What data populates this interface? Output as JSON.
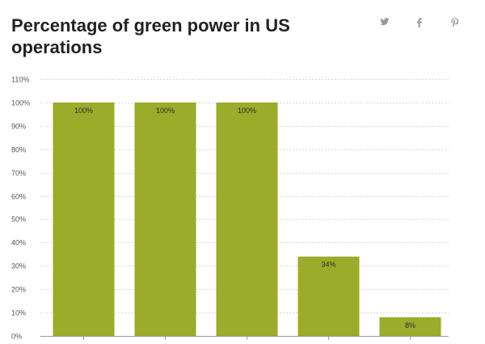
{
  "header": {
    "title": "Percentage of green power in US operations"
  },
  "share": {
    "twitter_icon": "twitter-bird-icon",
    "facebook_icon": "facebook-f-icon",
    "pinterest_icon": "pinterest-p-icon"
  },
  "colors": {
    "bar": "#9bab2a",
    "grid": "#d6d6d6",
    "axis": "#9a9a9a"
  },
  "chart_data": {
    "type": "bar",
    "title": "Percentage of green power in US operations",
    "categories": [
      "",
      "",
      "",
      "",
      ""
    ],
    "values": [
      100,
      100,
      100,
      34,
      8
    ],
    "value_labels": [
      "100%",
      "100%",
      "100%",
      "34%",
      "8%"
    ],
    "ylim": [
      0,
      110
    ],
    "yticks": [
      0,
      10,
      20,
      30,
      40,
      50,
      60,
      70,
      80,
      90,
      100,
      110
    ],
    "ytick_labels": [
      "0%",
      "10%",
      "20%",
      "30%",
      "40%",
      "50%",
      "60%",
      "70%",
      "80%",
      "90%",
      "100%",
      "110%"
    ],
    "grid": true,
    "legend": "none"
  }
}
